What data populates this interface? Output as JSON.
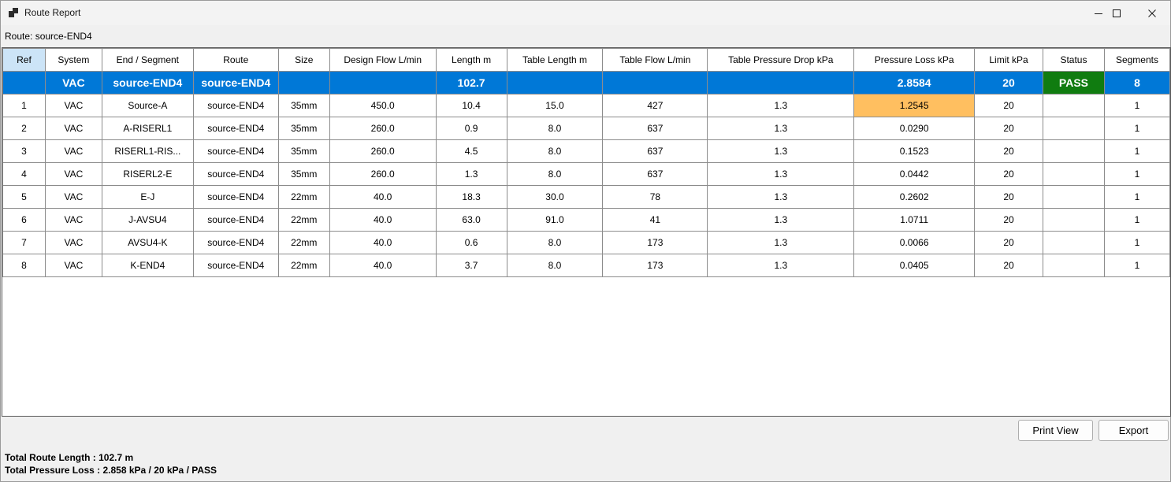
{
  "window": {
    "title": "Route Report",
    "route_label": "Route: source-END4"
  },
  "columns": [
    "Ref",
    "System",
    "End / Segment",
    "Route",
    "Size",
    "Design Flow L/min",
    "Length m",
    "Table Length m",
    "Table Flow L/min",
    "Table Pressure Drop kPa",
    "Pressure Loss kPa",
    "Limit kPa",
    "Status",
    "Segments"
  ],
  "summary": {
    "ref": "",
    "system": "VAC",
    "segment": "source-END4",
    "route": "source-END4",
    "size": "",
    "design_flow": "",
    "length": "102.7",
    "table_length": "",
    "table_flow": "",
    "table_pressure_drop": "",
    "pressure_loss": "2.8584",
    "limit": "20",
    "status": "PASS",
    "segments": "8"
  },
  "rows": [
    {
      "ref": "1",
      "system": "VAC",
      "segment": "Source-A",
      "route": "source-END4",
      "size": "35mm",
      "design_flow": "450.0",
      "length": "10.4",
      "table_length": "15.0",
      "table_flow": "427",
      "table_pressure_drop": "1.3",
      "pressure_loss": "1.2545",
      "limit": "20",
      "status": "",
      "segments": "1"
    },
    {
      "ref": "2",
      "system": "VAC",
      "segment": "A-RISERL1",
      "route": "source-END4",
      "size": "35mm",
      "design_flow": "260.0",
      "length": "0.9",
      "table_length": "8.0",
      "table_flow": "637",
      "table_pressure_drop": "1.3",
      "pressure_loss": "0.0290",
      "limit": "20",
      "status": "",
      "segments": "1"
    },
    {
      "ref": "3",
      "system": "VAC",
      "segment": "RISERL1-RIS...",
      "route": "source-END4",
      "size": "35mm",
      "design_flow": "260.0",
      "length": "4.5",
      "table_length": "8.0",
      "table_flow": "637",
      "table_pressure_drop": "1.3",
      "pressure_loss": "0.1523",
      "limit": "20",
      "status": "",
      "segments": "1"
    },
    {
      "ref": "4",
      "system": "VAC",
      "segment": "RISERL2-E",
      "route": "source-END4",
      "size": "35mm",
      "design_flow": "260.0",
      "length": "1.3",
      "table_length": "8.0",
      "table_flow": "637",
      "table_pressure_drop": "1.3",
      "pressure_loss": "0.0442",
      "limit": "20",
      "status": "",
      "segments": "1"
    },
    {
      "ref": "5",
      "system": "VAC",
      "segment": "E-J",
      "route": "source-END4",
      "size": "22mm",
      "design_flow": "40.0",
      "length": "18.3",
      "table_length": "30.0",
      "table_flow": "78",
      "table_pressure_drop": "1.3",
      "pressure_loss": "0.2602",
      "limit": "20",
      "status": "",
      "segments": "1"
    },
    {
      "ref": "6",
      "system": "VAC",
      "segment": "J-AVSU4",
      "route": "source-END4",
      "size": "22mm",
      "design_flow": "40.0",
      "length": "63.0",
      "table_length": "91.0",
      "table_flow": "41",
      "table_pressure_drop": "1.3",
      "pressure_loss": "1.0711",
      "limit": "20",
      "status": "",
      "segments": "1"
    },
    {
      "ref": "7",
      "system": "VAC",
      "segment": "AVSU4-K",
      "route": "source-END4",
      "size": "22mm",
      "design_flow": "40.0",
      "length": "0.6",
      "table_length": "8.0",
      "table_flow": "173",
      "table_pressure_drop": "1.3",
      "pressure_loss": "0.0066",
      "limit": "20",
      "status": "",
      "segments": "1"
    },
    {
      "ref": "8",
      "system": "VAC",
      "segment": "K-END4",
      "route": "source-END4",
      "size": "22mm",
      "design_flow": "40.0",
      "length": "3.7",
      "table_length": "8.0",
      "table_flow": "173",
      "table_pressure_drop": "1.3",
      "pressure_loss": "0.0405",
      "limit": "20",
      "status": "",
      "segments": "1"
    }
  ],
  "buttons": {
    "print_view": "Print View",
    "export": "Export"
  },
  "footer": {
    "total_length": "Total Route Length : 102.7 m",
    "total_pressure": "Total Pressure Loss : 2.858 kPa / 20 kPa / PASS"
  },
  "colors": {
    "summary_row": "#0078d7",
    "pass_badge": "#107c10",
    "warning_cell": "#ffbf60",
    "selected_header": "#cce4f7"
  },
  "icons": {
    "app": "app-window-icon",
    "minimize": "minimize-icon",
    "maximize": "maximize-icon",
    "close": "close-icon"
  }
}
